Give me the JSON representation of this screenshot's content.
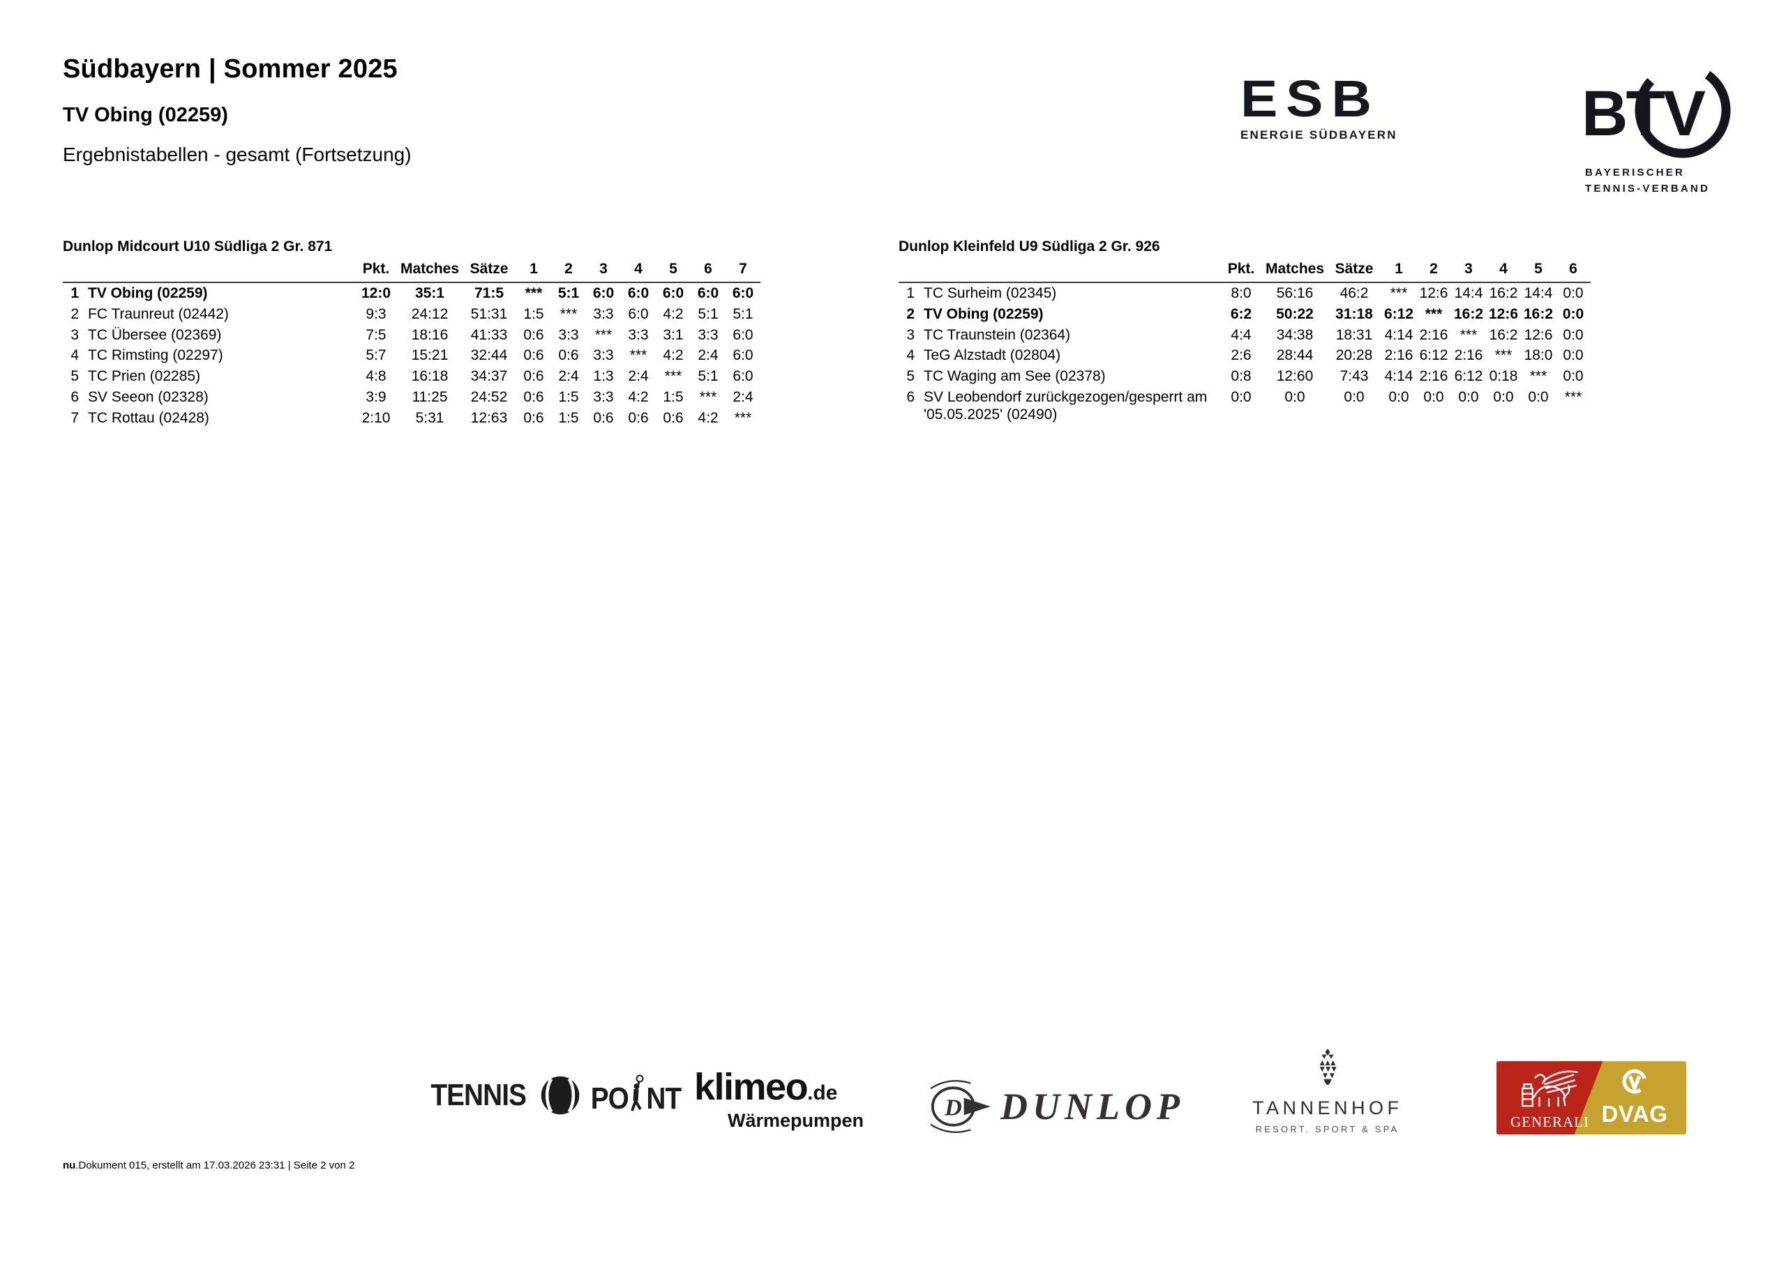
{
  "header": {
    "title": "Südbayern | Sommer 2025",
    "club": "TV Obing (02259)",
    "section": "Ergebnistabellen - gesamt (Fortsetzung)"
  },
  "logos": {
    "esb": {
      "name": "ESB",
      "tagline": "ENERGIE SÜDBAYERN"
    },
    "btv": {
      "name": "BTV",
      "tagline_line1": "BAYERISCHER",
      "tagline_line2": "TENNIS-VERBAND"
    },
    "tennis_point": {
      "word1": "TENNIS",
      "word2_part1": "PO",
      "word2_part2": "NT"
    },
    "klimeo": {
      "name": "klimeo",
      "tld": ".de",
      "tagline": "Wärmepumpen"
    },
    "dunlop": {
      "name": "DUNLOP",
      "emblem_letter": "D"
    },
    "tannenhof": {
      "name": "TANNENHOF",
      "tagline": "RESORT. SPORT & SPA"
    },
    "generali": {
      "name": "GENERALI",
      "brand_red": "#bb2418"
    },
    "dvag": {
      "name": "DVAG",
      "brand_gold": "#c5a32e"
    }
  },
  "tables": [
    {
      "title": "Dunlop Midcourt U10 Südliga 2 Gr. 871",
      "columns": [
        "Pkt.",
        "Matches",
        "Sätze",
        "1",
        "2",
        "3",
        "4",
        "5",
        "6",
        "7"
      ],
      "rows": [
        {
          "rank": "1",
          "team": "TV Obing (02259)",
          "bold": true,
          "values": [
            "12:0",
            "35:1",
            "71:5",
            "***",
            "5:1",
            "6:0",
            "6:0",
            "6:0",
            "6:0",
            "6:0"
          ]
        },
        {
          "rank": "2",
          "team": "FC Traunreut (02442)",
          "bold": false,
          "values": [
            "9:3",
            "24:12",
            "51:31",
            "1:5",
            "***",
            "3:3",
            "6:0",
            "4:2",
            "5:1",
            "5:1"
          ]
        },
        {
          "rank": "3",
          "team": "TC Übersee (02369)",
          "bold": false,
          "values": [
            "7:5",
            "18:16",
            "41:33",
            "0:6",
            "3:3",
            "***",
            "3:3",
            "3:1",
            "3:3",
            "6:0"
          ]
        },
        {
          "rank": "4",
          "team": "TC Rimsting (02297)",
          "bold": false,
          "values": [
            "5:7",
            "15:21",
            "32:44",
            "0:6",
            "0:6",
            "3:3",
            "***",
            "4:2",
            "2:4",
            "6:0"
          ]
        },
        {
          "rank": "5",
          "team": "TC Prien (02285)",
          "bold": false,
          "values": [
            "4:8",
            "16:18",
            "34:37",
            "0:6",
            "2:4",
            "1:3",
            "2:4",
            "***",
            "5:1",
            "6:0"
          ]
        },
        {
          "rank": "6",
          "team": "SV Seeon (02328)",
          "bold": false,
          "values": [
            "3:9",
            "11:25",
            "24:52",
            "0:6",
            "1:5",
            "3:3",
            "4:2",
            "1:5",
            "***",
            "2:4"
          ]
        },
        {
          "rank": "7",
          "team": "TC Rottau (02428)",
          "bold": false,
          "values": [
            "2:10",
            "5:31",
            "12:63",
            "0:6",
            "1:5",
            "0:6",
            "0:6",
            "0:6",
            "4:2",
            "***"
          ]
        }
      ]
    },
    {
      "title": "Dunlop Kleinfeld U9 Südliga 2 Gr. 926",
      "columns": [
        "Pkt.",
        "Matches",
        "Sätze",
        "1",
        "2",
        "3",
        "4",
        "5",
        "6"
      ],
      "rows": [
        {
          "rank": "1",
          "team": "TC Surheim (02345)",
          "bold": false,
          "values": [
            "8:0",
            "56:16",
            "46:2",
            "***",
            "12:6",
            "14:4",
            "16:2",
            "14:4",
            "0:0"
          ]
        },
        {
          "rank": "2",
          "team": "TV Obing (02259)",
          "bold": true,
          "values": [
            "6:2",
            "50:22",
            "31:18",
            "6:12",
            "***",
            "16:2",
            "12:6",
            "16:2",
            "0:0"
          ]
        },
        {
          "rank": "3",
          "team": "TC Traunstein (02364)",
          "bold": false,
          "values": [
            "4:4",
            "34:38",
            "18:31",
            "4:14",
            "2:16",
            "***",
            "16:2",
            "12:6",
            "0:0"
          ]
        },
        {
          "rank": "4",
          "team": "TeG Alzstadt (02804)",
          "bold": false,
          "values": [
            "2:6",
            "28:44",
            "20:28",
            "2:16",
            "6:12",
            "2:16",
            "***",
            "18:0",
            "0:0"
          ]
        },
        {
          "rank": "5",
          "team": "TC Waging am See (02378)",
          "bold": false,
          "values": [
            "0:8",
            "12:60",
            "7:43",
            "4:14",
            "2:16",
            "6:12",
            "0:18",
            "***",
            "0:0"
          ]
        },
        {
          "rank": "6",
          "team": "SV Leobendorf zurückgezogen/gesperrt am '05.05.2025' (02490)",
          "bold": false,
          "values": [
            "0:0",
            "0:0",
            "0:0",
            "0:0",
            "0:0",
            "0:0",
            "0:0",
            "0:0",
            "***"
          ]
        }
      ]
    }
  ],
  "footer": {
    "bold_prefix": "nu",
    "text": ".Dokument 015, erstellt am 17.03.2026 23:31 | Seite 2 von 2"
  }
}
